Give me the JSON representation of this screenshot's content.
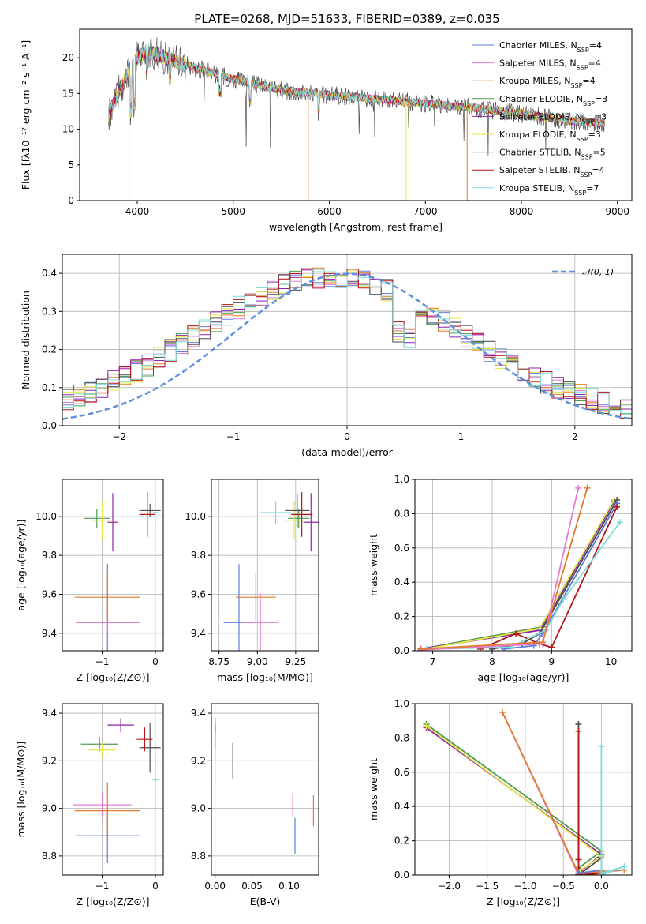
{
  "title": "PLATE=0268, MJD=51633, FIBERID=0389, z=0.035",
  "colors": [
    "#5b7fe0",
    "#e67ad0",
    "#e07b2a",
    "#4e9c4e",
    "#8e24aa",
    "#e6e64a",
    "#4d4d4d",
    "#b51414",
    "#7fdada"
  ],
  "chart_data": [
    {
      "id": "spectrum",
      "type": "line",
      "xlabel": "wavelength [Angstrom, rest frame]",
      "ylabel": "Flux [fλ10⁻¹⁷ erg cm⁻² s⁻¹ A⁻¹]",
      "xlim": [
        3400,
        9150
      ],
      "ylim": [
        0,
        24
      ],
      "xticks": [
        4000,
        5000,
        6000,
        7000,
        8000,
        9000
      ],
      "yticks": [
        0,
        5,
        10,
        15,
        20
      ],
      "legend_position": "top-right",
      "series": [
        {
          "name": "Chabrier MILES, N_SSP=4"
        },
        {
          "name": "Salpeter MILES, N_SSP=4"
        },
        {
          "name": "Kroupa MILES, N_SSP=4"
        },
        {
          "name": "Chabrier ELODIE, N_SSP=3"
        },
        {
          "name": "Salpeter ELODIE, N_SSP=3"
        },
        {
          "name": "Kroupa ELODIE, N_SSP=3"
        },
        {
          "name": "Chabrier STELIB, N_SSP=5"
        },
        {
          "name": "Salpeter STELIB, N_SSP=4"
        },
        {
          "name": "Kroupa STELIB, N_SSP=7"
        }
      ],
      "continuum": {
        "x": [
          3700,
          3800,
          3900,
          4000,
          4100,
          4200,
          4500,
          5000,
          5500,
          6000,
          6500,
          7000,
          7500,
          8000,
          8500,
          8850
        ],
        "y": [
          12,
          15,
          18,
          20,
          21,
          20.5,
          19,
          17,
          15.5,
          14.8,
          14.2,
          13.6,
          13,
          12.2,
          11.2,
          10.8
        ]
      }
    },
    {
      "id": "residuals",
      "type": "line",
      "xlabel": "(data-model)/error",
      "ylabel": "Normed distribution",
      "xlim": [
        -2.5,
        2.5
      ],
      "ylim": [
        0,
        0.45
      ],
      "xticks": [
        -2,
        -1,
        0,
        1,
        2
      ],
      "yticks": [
        0.0,
        0.1,
        0.2,
        0.3,
        0.4
      ],
      "grid": true,
      "legend_position": "top-right",
      "legend": [
        "𝒩(0, 1)"
      ],
      "gaussian": {
        "mu": 0,
        "sigma": 1
      }
    },
    {
      "id": "age_Z",
      "type": "scatter",
      "xlabel": "Z [log₁₀(Z/Z⊙)]",
      "ylabel": "age  [log₁₀(age/yr)]",
      "xlim": [
        -1.75,
        0.15
      ],
      "ylim": [
        9.31,
        10.19
      ],
      "xticks": [
        -1,
        0
      ],
      "yticks": [
        9.4,
        9.6,
        9.8,
        10.0
      ],
      "grid": true,
      "points": [
        {
          "s": 0,
          "x": -0.9,
          "y": 9.455,
          "xe": 0.6,
          "ye": 0.6
        },
        {
          "s": 1,
          "x": -0.9,
          "y": 9.455,
          "xe": 0.6,
          "ye": 0.1
        },
        {
          "s": 2,
          "x": -0.9,
          "y": 9.585,
          "xe": 0.62,
          "ye": 0.24
        },
        {
          "s": 3,
          "x": -1.1,
          "y": 9.99,
          "xe": 0.25,
          "ye": 0.1
        },
        {
          "s": 4,
          "x": -0.8,
          "y": 9.97,
          "xe": 0.1,
          "ye": 0.3
        },
        {
          "s": 5,
          "x": -1.0,
          "y": 9.98,
          "xe": 0.2,
          "ye": 0.2
        },
        {
          "s": 6,
          "x": -0.1,
          "y": 10.03,
          "xe": 0.2,
          "ye": 0.07
        },
        {
          "s": 7,
          "x": -0.15,
          "y": 10.01,
          "xe": 0.15,
          "ye": 0.23
        },
        {
          "s": 8,
          "x": 0.0,
          "y": 10.02,
          "xe": 0.05,
          "ye": 0.12
        }
      ]
    },
    {
      "id": "age_mass",
      "type": "scatter",
      "xlabel": "mass [log₁₀(M/M⊙)]",
      "ylabel": "",
      "xlim": [
        8.7,
        9.4
      ],
      "ylim": [
        9.31,
        10.19
      ],
      "xticks": [
        8.75,
        9.0,
        9.25
      ],
      "yticks": [
        9.4,
        9.6,
        9.8,
        10.0
      ],
      "grid": true,
      "points": [
        {
          "s": 0,
          "x": 8.88,
          "y": 9.455,
          "xe": 0.1,
          "ye": 0.6
        },
        {
          "s": 1,
          "x": 9.02,
          "y": 9.455,
          "xe": 0.12,
          "ye": 0.3
        },
        {
          "s": 2,
          "x": 8.99,
          "y": 9.585,
          "xe": 0.13,
          "ye": 0.24
        },
        {
          "s": 3,
          "x": 9.27,
          "y": 9.99,
          "xe": 0.07,
          "ye": 0.1
        },
        {
          "s": 4,
          "x": 9.35,
          "y": 9.97,
          "xe": 0.05,
          "ye": 0.3
        },
        {
          "s": 5,
          "x": 9.24,
          "y": 9.98,
          "xe": 0.06,
          "ye": 0.2
        },
        {
          "s": 6,
          "x": 9.26,
          "y": 10.03,
          "xe": 0.08,
          "ye": 0.17
        },
        {
          "s": 7,
          "x": 9.29,
          "y": 10.01,
          "xe": 0.07,
          "ye": 0.23
        },
        {
          "s": 8,
          "x": 9.12,
          "y": 10.02,
          "xe": 0.1,
          "ye": 0.12
        }
      ]
    },
    {
      "id": "mw_age",
      "type": "line",
      "xlabel": "age  [log₁₀(age/yr)]",
      "ylabel": "mass weight",
      "xlim": [
        6.7,
        10.35
      ],
      "ylim": [
        0,
        1
      ],
      "xticks": [
        7,
        8,
        9,
        10
      ],
      "yticks": [
        0.0,
        0.2,
        0.4,
        0.6,
        0.8,
        1.0
      ],
      "grid": true,
      "series": [
        {
          "s": 3,
          "x": [
            6.8,
            8.85,
            10.05
          ],
          "y": [
            0.01,
            0.14,
            0.88
          ]
        },
        {
          "s": 4,
          "x": [
            6.8,
            8.8,
            10.05
          ],
          "y": [
            0.01,
            0.12,
            0.87
          ]
        },
        {
          "s": 5,
          "x": [
            6.8,
            8.8,
            10.05
          ],
          "y": [
            0.005,
            0.13,
            0.88
          ]
        },
        {
          "s": 6,
          "x": [
            8.0,
            8.5,
            8.8,
            10.1
          ],
          "y": [
            0.01,
            0.04,
            0.1,
            0.88
          ]
        },
        {
          "s": 0,
          "x": [
            8.2,
            8.7,
            8.85,
            10.1
          ],
          "y": [
            0.01,
            0.03,
            0.1,
            0.86
          ]
        },
        {
          "s": 7,
          "x": [
            7.8,
            8.4,
            8.8,
            9.0,
            10.1
          ],
          "y": [
            0.01,
            0.1,
            0.04,
            0.02,
            0.84
          ]
        },
        {
          "s": 8,
          "x": [
            6.9,
            8.3,
            8.9,
            9.2,
            10.15
          ],
          "y": [
            0.01,
            0.02,
            0.12,
            0.3,
            0.75
          ]
        },
        {
          "s": 1,
          "x": [
            6.8,
            8.85,
            9.45
          ],
          "y": [
            0.005,
            0.04,
            0.95
          ]
        },
        {
          "s": 2,
          "x": [
            6.8,
            8.85,
            9.6
          ],
          "y": [
            0.01,
            0.05,
            0.95
          ]
        }
      ]
    },
    {
      "id": "mass_Z",
      "type": "scatter",
      "xlabel": "Z [log₁₀(Z/Z⊙)]",
      "ylabel": "mass [log₁₀(M/M⊙)]",
      "xlim": [
        -1.75,
        0.15
      ],
      "ylim": [
        8.72,
        9.44
      ],
      "xticks": [
        -1,
        0
      ],
      "yticks": [
        8.8,
        9.0,
        9.2,
        9.4
      ],
      "grid": true,
      "points": [
        {
          "s": 0,
          "x": -0.9,
          "y": 8.885,
          "xe": 0.6,
          "ye": 0.23
        },
        {
          "s": 1,
          "x": -1.0,
          "y": 9.015,
          "xe": 0.55,
          "ye": 0.1
        },
        {
          "s": 2,
          "x": -0.9,
          "y": 8.99,
          "xe": 0.62,
          "ye": 0.24
        },
        {
          "s": 3,
          "x": -1.05,
          "y": 9.27,
          "xe": 0.35,
          "ye": 0.06
        },
        {
          "s": 4,
          "x": -0.65,
          "y": 9.35,
          "xe": 0.25,
          "ye": 0.06
        },
        {
          "s": 5,
          "x": -1.0,
          "y": 9.245,
          "xe": 0.25,
          "ye": 0.06
        },
        {
          "s": 6,
          "x": -0.1,
          "y": 9.255,
          "xe": 0.2,
          "ye": 0.21
        },
        {
          "s": 7,
          "x": -0.2,
          "y": 9.29,
          "xe": 0.15,
          "ye": 0.1
        },
        {
          "s": 8,
          "x": 0.0,
          "y": 9.12,
          "xe": 0.05,
          "ye": 0.26
        }
      ]
    },
    {
      "id": "mass_ebv",
      "type": "scatter",
      "xlabel": "E(B-V)",
      "ylabel": "",
      "xlim": [
        -0.005,
        0.14
      ],
      "ylim": [
        8.72,
        9.44
      ],
      "xticks": [
        0.0,
        0.05,
        0.1
      ],
      "yticks": [
        8.8,
        9.0,
        9.2,
        9.4
      ],
      "grid": true,
      "points": [
        {
          "s": 0,
          "x": 0.108,
          "y": 8.885,
          "xe": 0,
          "ye": 0.15
        },
        {
          "s": 1,
          "x": 0.105,
          "y": 9.015,
          "xe": 0,
          "ye": 0.1
        },
        {
          "s": 2,
          "x": 0.133,
          "y": 8.99,
          "xe": 0,
          "ye": 0.13
        },
        {
          "s": 3,
          "x": 0.0,
          "y": 9.27,
          "xe": 0,
          "ye": 0.05
        },
        {
          "s": 4,
          "x": 0.0,
          "y": 9.35,
          "xe": 0,
          "ye": 0.06
        },
        {
          "s": 5,
          "x": 0.0,
          "y": 9.245,
          "xe": 0,
          "ye": 0.1
        },
        {
          "s": 6,
          "x": 0.024,
          "y": 9.2,
          "xe": 0,
          "ye": 0.15
        },
        {
          "s": 7,
          "x": 0.0,
          "y": 9.3,
          "xe": 0,
          "ye": 0.1
        },
        {
          "s": 8,
          "x": 0.0,
          "y": 9.2,
          "xe": 0,
          "ye": 0.2
        }
      ]
    },
    {
      "id": "mw_Z",
      "type": "line",
      "xlabel": "Z [log₁₀(Z/Z⊙)]",
      "ylabel": "mass weight",
      "xlim": [
        -2.45,
        0.4
      ],
      "ylim": [
        0,
        1
      ],
      "xticks": [
        -2.0,
        -1.5,
        -1.0,
        -0.5,
        0.0
      ],
      "yticks": [
        0.0,
        0.2,
        0.4,
        0.6,
        0.8,
        1.0
      ],
      "grid": true,
      "series": [
        {
          "s": 3,
          "x": [
            -2.3,
            0.0,
            -0.3
          ],
          "y": [
            0.88,
            0.14,
            0.04
          ]
        },
        {
          "s": 4,
          "x": [
            -2.3,
            0.0,
            -0.3
          ],
          "y": [
            0.86,
            0.12,
            0.01
          ]
        },
        {
          "s": 5,
          "x": [
            -2.3,
            0.0,
            -0.3
          ],
          "y": [
            0.87,
            0.11,
            0.02
          ]
        },
        {
          "s": 1,
          "x": [
            -1.3,
            -0.3,
            0.3
          ],
          "y": [
            0.95,
            0.0,
            0.03
          ]
        },
        {
          "s": 2,
          "x": [
            -1.3,
            -0.3,
            0.3
          ],
          "y": [
            0.95,
            0.01,
            0.03
          ]
        },
        {
          "s": 6,
          "x": [
            -0.3,
            -0.3,
            0.0
          ],
          "y": [
            0.88,
            0.0,
            0.1
          ]
        },
        {
          "s": 7,
          "x": [
            -0.3,
            -0.3,
            -0.3,
            0.0
          ],
          "y": [
            0.84,
            0.09,
            0.0,
            0.01
          ]
        },
        {
          "s": 0,
          "x": [
            -0.3,
            0.0,
            0.0
          ],
          "y": [
            0.01,
            0.03,
            0.12
          ]
        },
        {
          "s": 8,
          "x": [
            0.0,
            0.0,
            0.3,
            0.0
          ],
          "y": [
            0.75,
            0.01,
            0.05,
            0.0
          ]
        }
      ]
    }
  ]
}
